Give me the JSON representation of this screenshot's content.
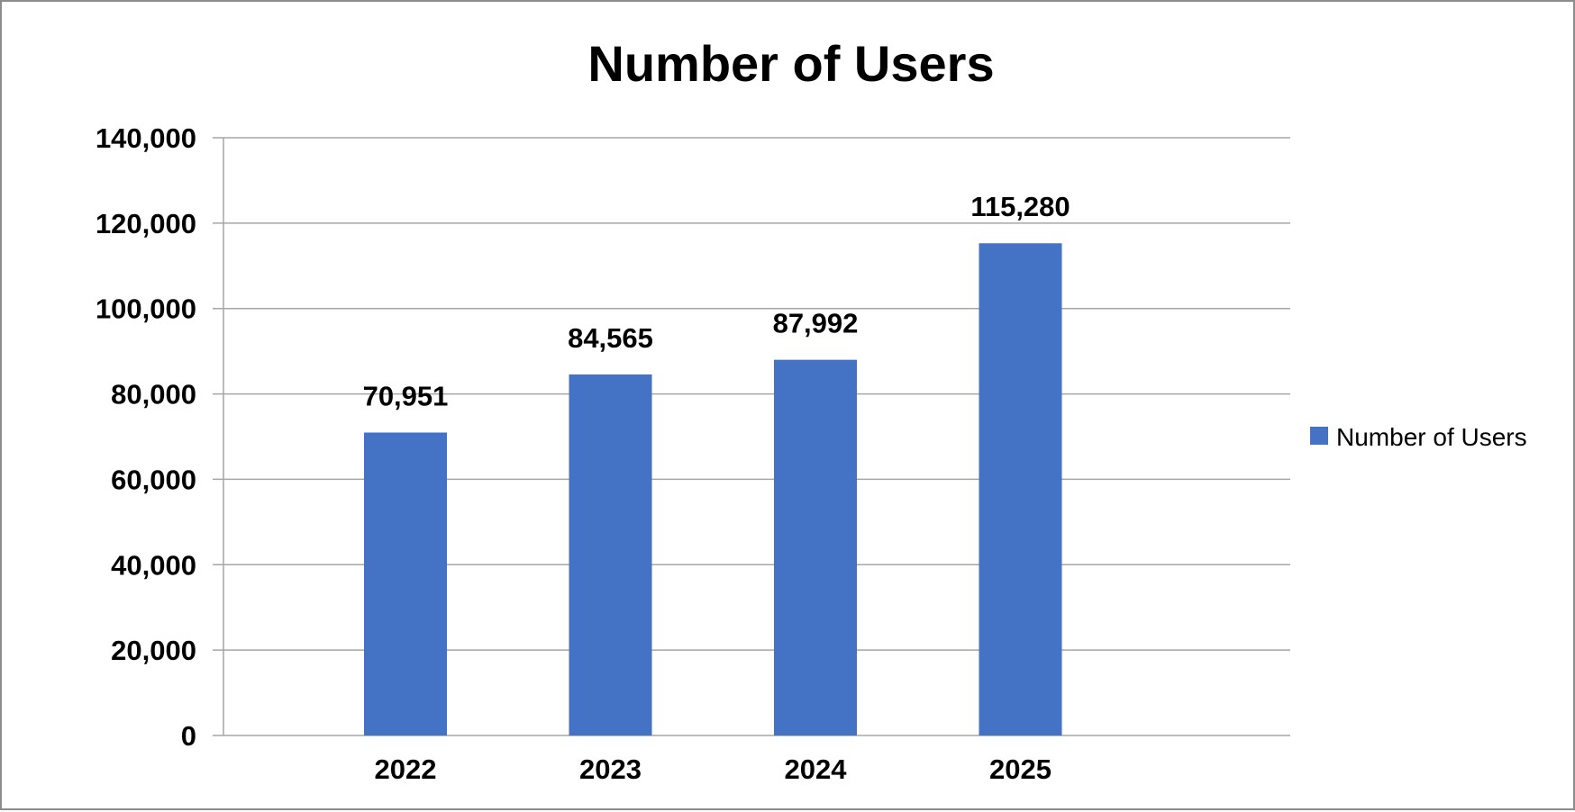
{
  "chart_data": {
    "type": "bar",
    "title": "Number of Users",
    "categories": [
      "2022",
      "2023",
      "2024",
      "2025"
    ],
    "series": [
      {
        "name": "Number of Users",
        "values": [
          70951,
          84565,
          87992,
          115280
        ],
        "labels": [
          "70,951",
          "84,565",
          "87,992",
          "115,280"
        ],
        "color": "#4472C4"
      }
    ],
    "ylim": [
      0,
      140000
    ],
    "yticks": [
      0,
      20000,
      40000,
      60000,
      80000,
      100000,
      120000,
      140000
    ],
    "ytick_labels": [
      "0",
      "20,000",
      "40,000",
      "60,000",
      "80,000",
      "100,000",
      "120,000",
      "140,000"
    ],
    "xlabel": "",
    "ylabel": "",
    "grid": true,
    "legend_position": "right"
  }
}
